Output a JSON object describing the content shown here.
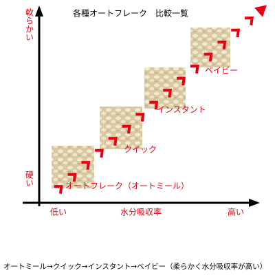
{
  "title": "各種オートフレーク　比較一覧",
  "y_axis": {
    "top": "軟らかい",
    "bottom": "硬い"
  },
  "x_axis": {
    "low": "低い",
    "label": "水分吸収率",
    "high": "高い"
  },
  "items": [
    {
      "label": "オートフレーク（オートミール）"
    },
    {
      "label": "クイック"
    },
    {
      "label": "インスタント"
    },
    {
      "label": "ベイビー"
    }
  ],
  "caption": "オートミール→クイック→インスタント→ベイビー（柔らかく水分吸収率が高い）"
}
